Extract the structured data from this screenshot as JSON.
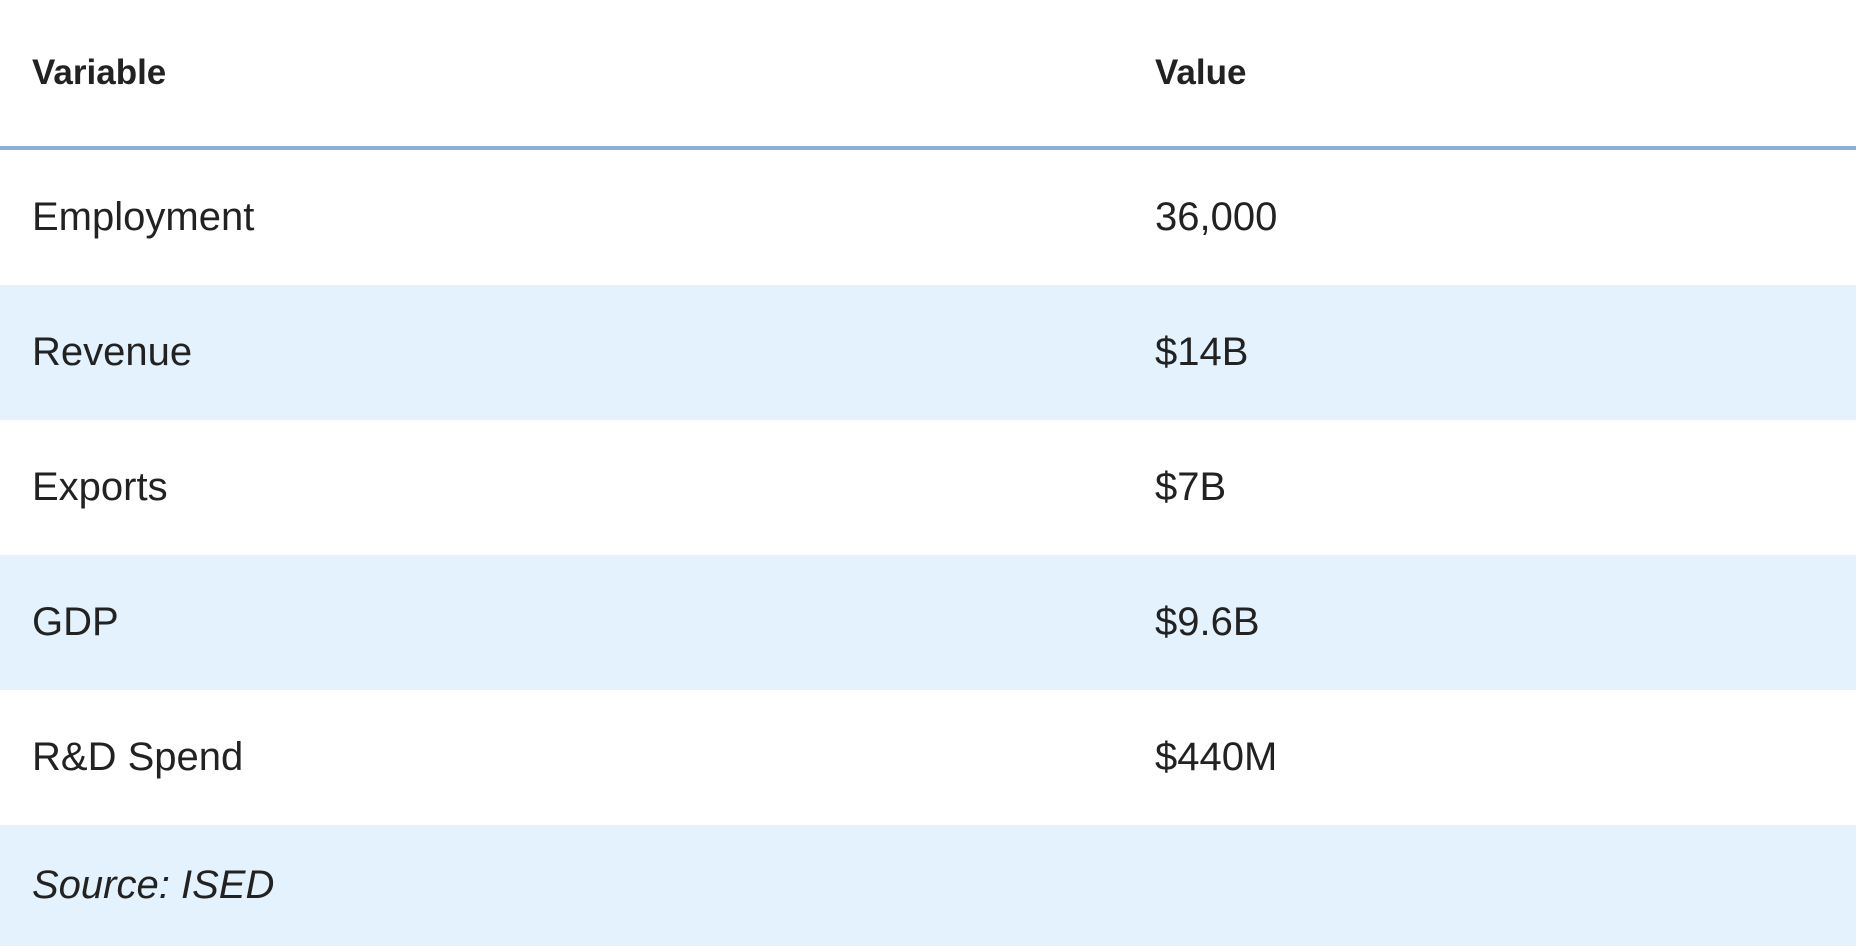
{
  "table": {
    "headers": [
      "Variable",
      "Value"
    ],
    "rows": [
      [
        "Employment",
        "36,000"
      ],
      [
        "Revenue",
        "$14B"
      ],
      [
        "Exports",
        "$7B"
      ],
      [
        "GDP",
        "$9.6B"
      ],
      [
        "R&D Spend",
        "$440M"
      ]
    ],
    "source": "Source: ISED"
  }
}
